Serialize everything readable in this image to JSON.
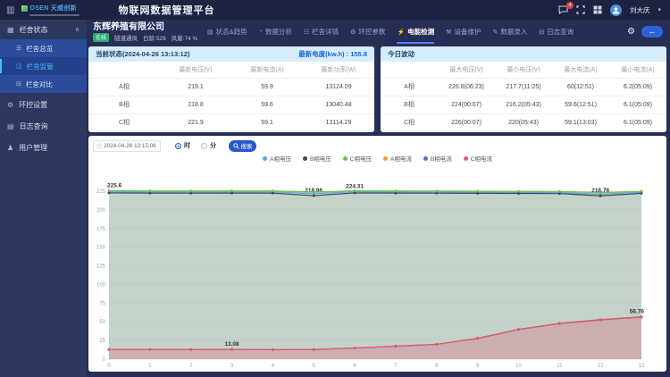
{
  "header": {
    "logo_text": "OSEN 天威创新",
    "title": "物联网数据管理平台",
    "badge_count": "4",
    "username": "刘大庆"
  },
  "sidebar": {
    "group": {
      "label": "栏舍状态",
      "icon_glyph": "▦",
      "caret_glyph": "∧"
    },
    "sub_items": [
      {
        "label": "栏舍总览",
        "icon_glyph": "☰",
        "active": false
      },
      {
        "label": "栏舍监管",
        "icon_glyph": "◫",
        "active": true
      },
      {
        "label": "栏舍对比",
        "icon_glyph": "⊟",
        "active": false
      }
    ],
    "items": [
      {
        "label": "环控设置",
        "icon_glyph": "⚙"
      },
      {
        "label": "日志查询",
        "icon_glyph": "▤"
      },
      {
        "label": "用户管理",
        "icon_glyph": "♟"
      }
    ]
  },
  "subheader": {
    "company": "东辉养殖有限公司",
    "status_badge": "在线",
    "meta": [
      "隧道通风",
      "日龄:529",
      "风量:74 %"
    ],
    "tabs": [
      {
        "label": "状态&趋势",
        "icon_glyph": "▤",
        "active": false
      },
      {
        "label": "数据分析",
        "icon_glyph": "◔",
        "active": false
      },
      {
        "label": "栏舍详情",
        "icon_glyph": "☷",
        "active": false
      },
      {
        "label": "环控参数",
        "icon_glyph": "⚙",
        "active": false
      },
      {
        "label": "电能检测",
        "icon_glyph": "⚡",
        "active": true
      },
      {
        "label": "设备维护",
        "icon_glyph": "⚒",
        "active": false
      },
      {
        "label": "数据录入",
        "icon_glyph": "✎",
        "active": false
      },
      {
        "label": "日志查询",
        "icon_glyph": "⊟",
        "active": false
      }
    ],
    "back_arrow": "←",
    "gear_glyph": "⚙"
  },
  "current_status": {
    "title": "当前状态(2024-04-26 13:13:12)",
    "energy_label": "最新电度(kw.h) :",
    "energy_value": "155.8",
    "columns": [
      "",
      "最新电压(V)",
      "最新电流(A)",
      "最新功率(W)"
    ],
    "rows": [
      [
        "A相",
        "219.1",
        "59.9",
        "13124.09"
      ],
      [
        "B相",
        "218.8",
        "59.6",
        "13040.48"
      ],
      [
        "C相",
        "221.9",
        "59.1",
        "13114.29"
      ]
    ]
  },
  "today_fluctuation": {
    "title": "今日波动",
    "columns": [
      "",
      "最大电压(V)",
      "最小电压(V)",
      "最大电流(A)",
      "最小电流(A)"
    ],
    "rows": [
      [
        "A相",
        "226.8(06:23)",
        "217.7(11:25)",
        "60(12:51)",
        "6.2(05:09)"
      ],
      [
        "B相",
        "224(00:07)",
        "216.2(05:43)",
        "59.6(12:51)",
        "6.1(05:09)"
      ],
      [
        "C相",
        "226(00:07)",
        "220(05:43)",
        "59.1(13:03)",
        "6.1(05:09)"
      ]
    ]
  },
  "chart_controls": {
    "datetime": "2024-04-26 13:15:08",
    "clock_glyph": "◷",
    "radio_hour": "时",
    "radio_minute": "分",
    "hour_checked": true,
    "search_label": "搜索"
  },
  "chart_data": {
    "type": "line",
    "x": [
      "0",
      "1",
      "2",
      "3",
      "4",
      "5",
      "6",
      "7",
      "8",
      "9",
      "10",
      "11",
      "12",
      "13"
    ],
    "ylim": [
      0,
      225
    ],
    "ytick_step": 25,
    "grid": true,
    "legend_position": "top",
    "series": [
      {
        "name": "A相电压",
        "color": "#54a8e8",
        "values": [
          224.1,
          224.0,
          223.9,
          224.0,
          223.9,
          221.6,
          224.31,
          223.9,
          223.8,
          223.6,
          223.4,
          223.2,
          221.0,
          223.4
        ],
        "labels": {
          "6": "224.31"
        }
      },
      {
        "name": "B相电压",
        "color": "#44484f",
        "values": [
          222.7,
          222.5,
          222.4,
          222.5,
          222.4,
          218.96,
          222.7,
          222.5,
          222.4,
          222.2,
          222.0,
          221.8,
          218.76,
          222.1
        ],
        "labels": {
          "5": "218.96",
          "12": "218.76"
        }
      },
      {
        "name": "C相电压",
        "color": "#6ec045",
        "fill": "rgba(125,158,138,0.45)",
        "values": [
          225.6,
          225.4,
          225.3,
          225.4,
          225.3,
          223.8,
          225.5,
          225.3,
          225.2,
          225.0,
          224.8,
          224.6,
          223.2,
          224.8
        ],
        "labels": {
          "0": "225.6"
        }
      },
      {
        "name": "A相电流",
        "color": "#f59a3e",
        "values": [
          12.7,
          12.8,
          12.6,
          12.8,
          12.5,
          12.7,
          14.7,
          17.1,
          19.5,
          27.4,
          39.4,
          47.4,
          52.4,
          56.1
        ]
      },
      {
        "name": "B相电流",
        "color": "#5b6ec9",
        "values": [
          12.9,
          13.0,
          12.8,
          13.0,
          12.7,
          12.9,
          14.9,
          17.3,
          19.8,
          27.7,
          39.7,
          47.7,
          52.7,
          56.4
        ]
      },
      {
        "name": "C相电流",
        "color": "#e8566e",
        "fill": "rgba(214,130,146,0.45)",
        "values": [
          13.0,
          13.1,
          12.9,
          13.08,
          12.8,
          13.0,
          15.0,
          17.5,
          20.0,
          28.0,
          40.0,
          48.0,
          53.0,
          56.76
        ],
        "labels": {
          "3": "13.08",
          "13": "56.76"
        }
      }
    ]
  }
}
